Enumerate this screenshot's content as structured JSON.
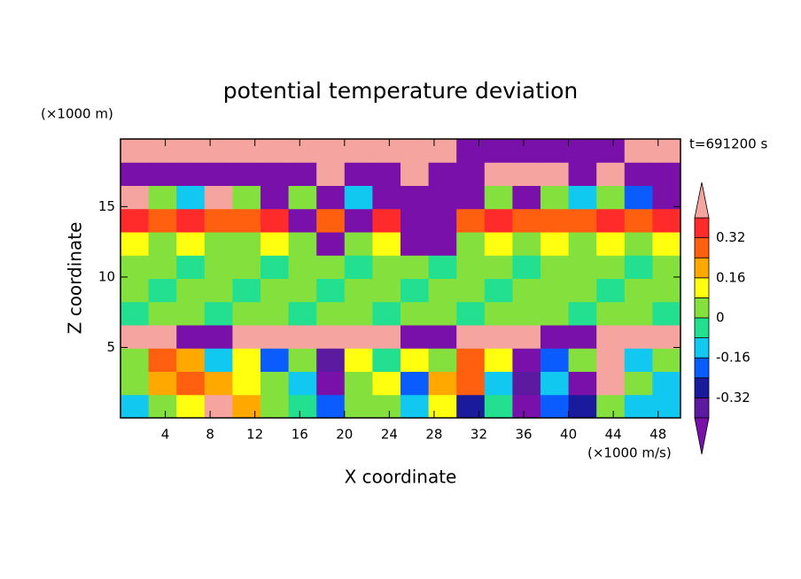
{
  "chart_data": {
    "type": "contour",
    "title": "potential temperature deviation",
    "y_units": "(×1000 m)",
    "x_units": "(×1000 m/s)",
    "x_label": "X coordinate",
    "y_label": "Z coordinate",
    "time_label": "t=691200 s",
    "xlim": [
      0,
      50
    ],
    "ylim": [
      0,
      19.8
    ],
    "xticks": [
      4,
      8,
      12,
      16,
      20,
      24,
      28,
      32,
      36,
      40,
      44,
      48
    ],
    "yticks": [
      5,
      10,
      15
    ],
    "levels": [
      -0.4,
      -0.32,
      -0.24,
      -0.16,
      -0.08,
      0,
      0.08,
      0.16,
      0.24,
      0.32,
      0.4
    ],
    "colors": [
      "#7a10aa",
      "#5c1aa0",
      "#1a1a9c",
      "#0a5cff",
      "#10c8f0",
      "#22e090",
      "#84e03c",
      "#ffff10",
      "#ffa800",
      "#ff6010",
      "#ff2a2a",
      "#f6a4a0"
    ],
    "colorbar_ticks": [
      -0.32,
      -0.16,
      0,
      0.16,
      0.32
    ],
    "x": [
      1.25,
      3.75,
      6.25,
      8.75,
      11.25,
      13.75,
      16.25,
      18.75,
      21.25,
      23.75,
      26.25,
      28.75,
      31.25,
      33.75,
      36.25,
      38.75,
      41.25,
      43.75,
      46.25,
      48.75
    ],
    "y": [
      0.825,
      2.475,
      4.125,
      5.775,
      7.425,
      9.075,
      10.725,
      12.375,
      14.025,
      15.675,
      17.325,
      18.975
    ],
    "z": [
      [
        -0.1,
        0.05,
        0.1,
        0.5,
        0.2,
        0.05,
        -0.05,
        -0.2,
        0,
        0.05,
        -0.1,
        0.1,
        -0.3,
        -0.05,
        -0.45,
        -0.2,
        -0.3,
        0.05,
        -0.1,
        -0.15
      ],
      [
        0.05,
        0.2,
        0.3,
        0.2,
        0.1,
        0.05,
        -0.15,
        -0.45,
        0.05,
        0.15,
        -0.2,
        0.2,
        0.3,
        -0.15,
        -0.35,
        -0.1,
        -0.45,
        0.5,
        0.05,
        -0.1
      ],
      [
        0.05,
        0.25,
        0.2,
        -0.1,
        0.1,
        -0.2,
        0.05,
        -0.4,
        0.1,
        -0.05,
        0.1,
        0.05,
        0.25,
        0.1,
        -0.45,
        -0.2,
        0.05,
        0.5,
        -0.1,
        0.05
      ],
      [
        0.5,
        0.5,
        -0.45,
        -0.45,
        0.5,
        0.5,
        0.5,
        0.5,
        0.5,
        0.5,
        -0.45,
        -0.45,
        0.5,
        0.5,
        0.5,
        -0.45,
        -0.45,
        0.5,
        0.5,
        0.5
      ],
      [
        -0.03,
        0.02,
        0.04,
        -0.03,
        0.03,
        0.02,
        -0.03,
        0.04,
        0.03,
        -0.03,
        0.02,
        0.04,
        -0.03,
        0.03,
        0.02,
        0.04,
        -0.03,
        0.03,
        0.02,
        -0.03
      ],
      [
        0.02,
        -0.03,
        0.03,
        0.04,
        -0.03,
        0.02,
        0.04,
        -0.03,
        0.02,
        0.03,
        -0.03,
        0.02,
        0.04,
        -0.03,
        0.03,
        0.02,
        0.04,
        -0.03,
        0.03,
        0.02
      ],
      [
        0.04,
        0.03,
        -0.03,
        0.02,
        0.04,
        -0.03,
        0.02,
        0.03,
        -0.03,
        0.04,
        0.02,
        -0.03,
        0.03,
        0.04,
        -0.03,
        0.02,
        0.03,
        0.04,
        -0.03,
        0.04
      ],
      [
        0.1,
        0.05,
        0.1,
        0.05,
        0.05,
        0.1,
        0.05,
        -0.45,
        0.05,
        0.1,
        -0.45,
        -0.45,
        0.05,
        0.1,
        0.05,
        0.1,
        0.05,
        0.1,
        0.05,
        0.1
      ],
      [
        0.35,
        0.3,
        0.35,
        0.25,
        0.3,
        0.35,
        -0.45,
        0.3,
        -0.45,
        0.35,
        -0.45,
        -0.45,
        0.3,
        0.35,
        0.3,
        0.25,
        0.3,
        0.35,
        0.3,
        0.35
      ],
      [
        0.5,
        0.05,
        -0.1,
        0.5,
        0.05,
        -0.45,
        0.05,
        -0.45,
        -0.1,
        -0.45,
        -0.45,
        -0.45,
        -0.45,
        0.05,
        -0.45,
        0.05,
        -0.1,
        0.05,
        -0.2,
        -0.45
      ],
      [
        -0.45,
        -0.45,
        -0.45,
        -0.45,
        -0.45,
        -0.45,
        -0.45,
        0.5,
        -0.45,
        -0.45,
        0.5,
        -0.45,
        -0.45,
        0.5,
        0.5,
        0.5,
        -0.45,
        0.5,
        -0.45,
        -0.45
      ],
      [
        0.5,
        0.5,
        0.5,
        0.5,
        0.5,
        0.5,
        0.5,
        0.5,
        0.5,
        0.5,
        0.5,
        0.5,
        -0.45,
        -0.45,
        -0.45,
        -0.45,
        -0.45,
        -0.45,
        0.5,
        0.5
      ]
    ]
  }
}
